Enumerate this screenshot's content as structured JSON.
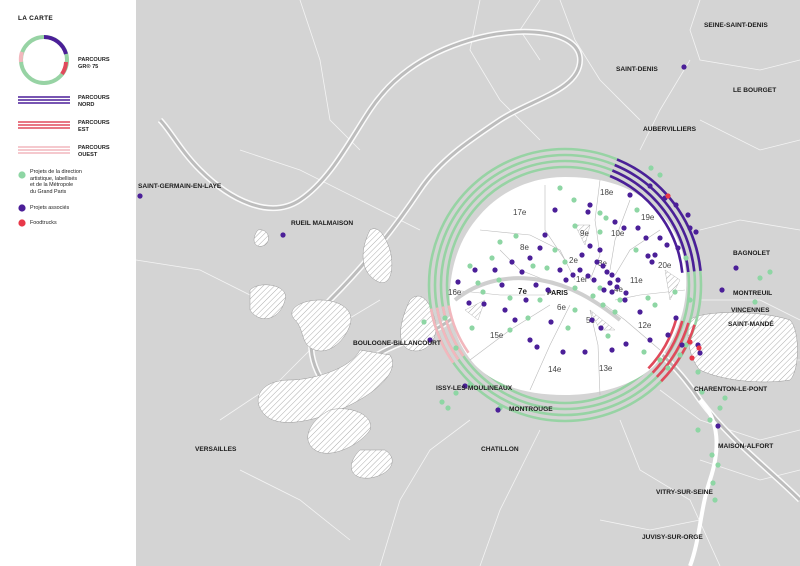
{
  "legend": {
    "title": "LA CARTE",
    "routes": [
      {
        "line1": "PARCOURS",
        "line2": "GR® 75"
      },
      {
        "line1": "PARCOURS",
        "line2": "NORD"
      },
      {
        "line1": "PARCOURS",
        "line2": "EST"
      },
      {
        "line1": "PARCOURS",
        "line2": "OUEST"
      }
    ],
    "points": [
      {
        "lines": [
          "Projets de la direction",
          "artistique, labellisés",
          "et de la Métropole",
          "du Grand Paris"
        ]
      },
      {
        "lines": [
          "Projets associés"
        ]
      },
      {
        "lines": [
          "Foodtrucks"
        ]
      }
    ]
  },
  "colors": {
    "gr75": "#97d3a4",
    "nord": "#4b1f98",
    "est": "#e04a5b",
    "ouest": "#f2b7bd",
    "labellises": "#8ed6a4",
    "associes": "#4b1f98",
    "foodtrucks": "#e83849",
    "background": "#d4d4d4",
    "paris": "#ffffff"
  },
  "places": [
    {
      "name": "SEINE-SAINT-DENIS"
    },
    {
      "name": "SAINT-DENIS"
    },
    {
      "name": "LE BOURGET"
    },
    {
      "name": "AUBERVILLIERS"
    },
    {
      "name": "SAINT-GERMAIN-EN-LAYE"
    },
    {
      "name": "RUEIL MALMAISON"
    },
    {
      "name": "BAGNOLET"
    },
    {
      "name": "MONTREUIL"
    },
    {
      "name": "VINCENNES"
    },
    {
      "name": "SAINT-MANDÉ"
    },
    {
      "name": "BOULOGNE-BILLANCOURT"
    },
    {
      "name": "ISSY-LES-MOULINEAUX"
    },
    {
      "name": "CHARENTON-LE-PONT"
    },
    {
      "name": "MONTROUGE"
    },
    {
      "name": "MAISON-ALFORT"
    },
    {
      "name": "VERSAILLES"
    },
    {
      "name": "CHATILLON"
    },
    {
      "name": "VITRY-SUR-SEINE"
    },
    {
      "name": "JUVISY-SUR-ORGE"
    }
  ],
  "paris_label": "PARIS",
  "arrondissements": [
    {
      "label": "1er"
    },
    {
      "label": "2e"
    },
    {
      "label": "3e"
    },
    {
      "label": "4e"
    },
    {
      "label": "5e"
    },
    {
      "label": "6e"
    },
    {
      "label": "7e"
    },
    {
      "label": "8e"
    },
    {
      "label": "9e"
    },
    {
      "label": "10e"
    },
    {
      "label": "11e"
    },
    {
      "label": "12e"
    },
    {
      "label": "13e"
    },
    {
      "label": "14e"
    },
    {
      "label": "15e"
    },
    {
      "label": "16e"
    },
    {
      "label": "17e"
    },
    {
      "label": "18e"
    },
    {
      "label": "19e"
    },
    {
      "label": "20e"
    }
  ]
}
